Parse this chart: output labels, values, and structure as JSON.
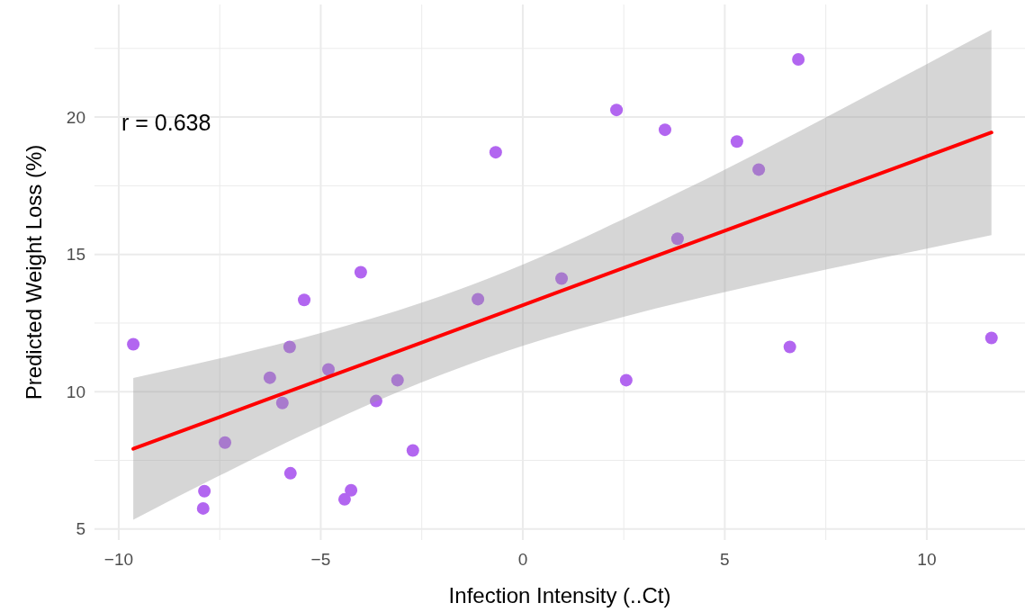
{
  "chart_data": {
    "type": "scatter",
    "xlabel": "Infection Intensity (..Ct)",
    "ylabel": "Predicted Weight Loss (%)",
    "annotations": [
      "r = 0.638"
    ],
    "xlim": [
      -10.6,
      12.43
    ],
    "ylim": [
      4.6,
      24.1
    ],
    "xticks": [
      {
        "value": -10,
        "label": "−10"
      },
      {
        "value": -7.5,
        "label": null
      },
      {
        "value": -5,
        "label": "−5"
      },
      {
        "value": -2.5,
        "label": null
      },
      0,
      {
        "value": 2.5,
        "label": null
      },
      5,
      {
        "value": 7.5,
        "label": null
      },
      10
    ],
    "yticks": [
      5,
      {
        "value": 7.5,
        "label": null
      },
      10,
      {
        "value": 12.5,
        "label": null
      },
      15,
      {
        "value": 17.5,
        "label": null
      },
      20,
      {
        "value": 22.5,
        "label": null
      }
    ],
    "grid": true,
    "series": [
      {
        "color": "#b266f0",
        "marker": "circle",
        "x": [
          -9.64,
          -7.88,
          -7.91,
          -7.37,
          -6.26,
          -5.95,
          -5.77,
          -5.75,
          -5.41,
          -4.81,
          -4.41,
          -4.25,
          -4.01,
          -3.63,
          -3.1,
          -2.72,
          -1.11,
          -0.67,
          0.96,
          2.32,
          2.56,
          3.52,
          3.83,
          5.3,
          5.84,
          6.61,
          6.82,
          11.6
        ],
        "values": [
          11.73,
          6.38,
          5.75,
          8.15,
          10.51,
          9.59,
          11.63,
          7.03,
          13.34,
          10.81,
          6.08,
          6.41,
          14.35,
          9.66,
          10.42,
          7.86,
          13.37,
          18.72,
          14.12,
          20.26,
          10.42,
          19.54,
          15.57,
          19.11,
          18.09,
          11.63,
          22.1,
          11.96
        ]
      },
      {
        "type": "line",
        "color": "#ff0000",
        "x": [
          -9.64,
          -7.5,
          -5,
          -2.5,
          0,
          2.5,
          5,
          7.5,
          10,
          11.6
        ],
        "values": [
          7.92,
          9.08,
          10.44,
          11.79,
          13.15,
          14.51,
          15.86,
          17.22,
          18.57,
          19.44
        ],
        "lower": [
          5.34,
          6.95,
          8.74,
          10.34,
          11.67,
          12.73,
          13.63,
          14.45,
          15.21,
          15.7
        ],
        "upper": [
          10.5,
          11.21,
          12.14,
          13.24,
          14.63,
          16.29,
          18.09,
          19.99,
          21.93,
          23.18
        ]
      }
    ]
  }
}
